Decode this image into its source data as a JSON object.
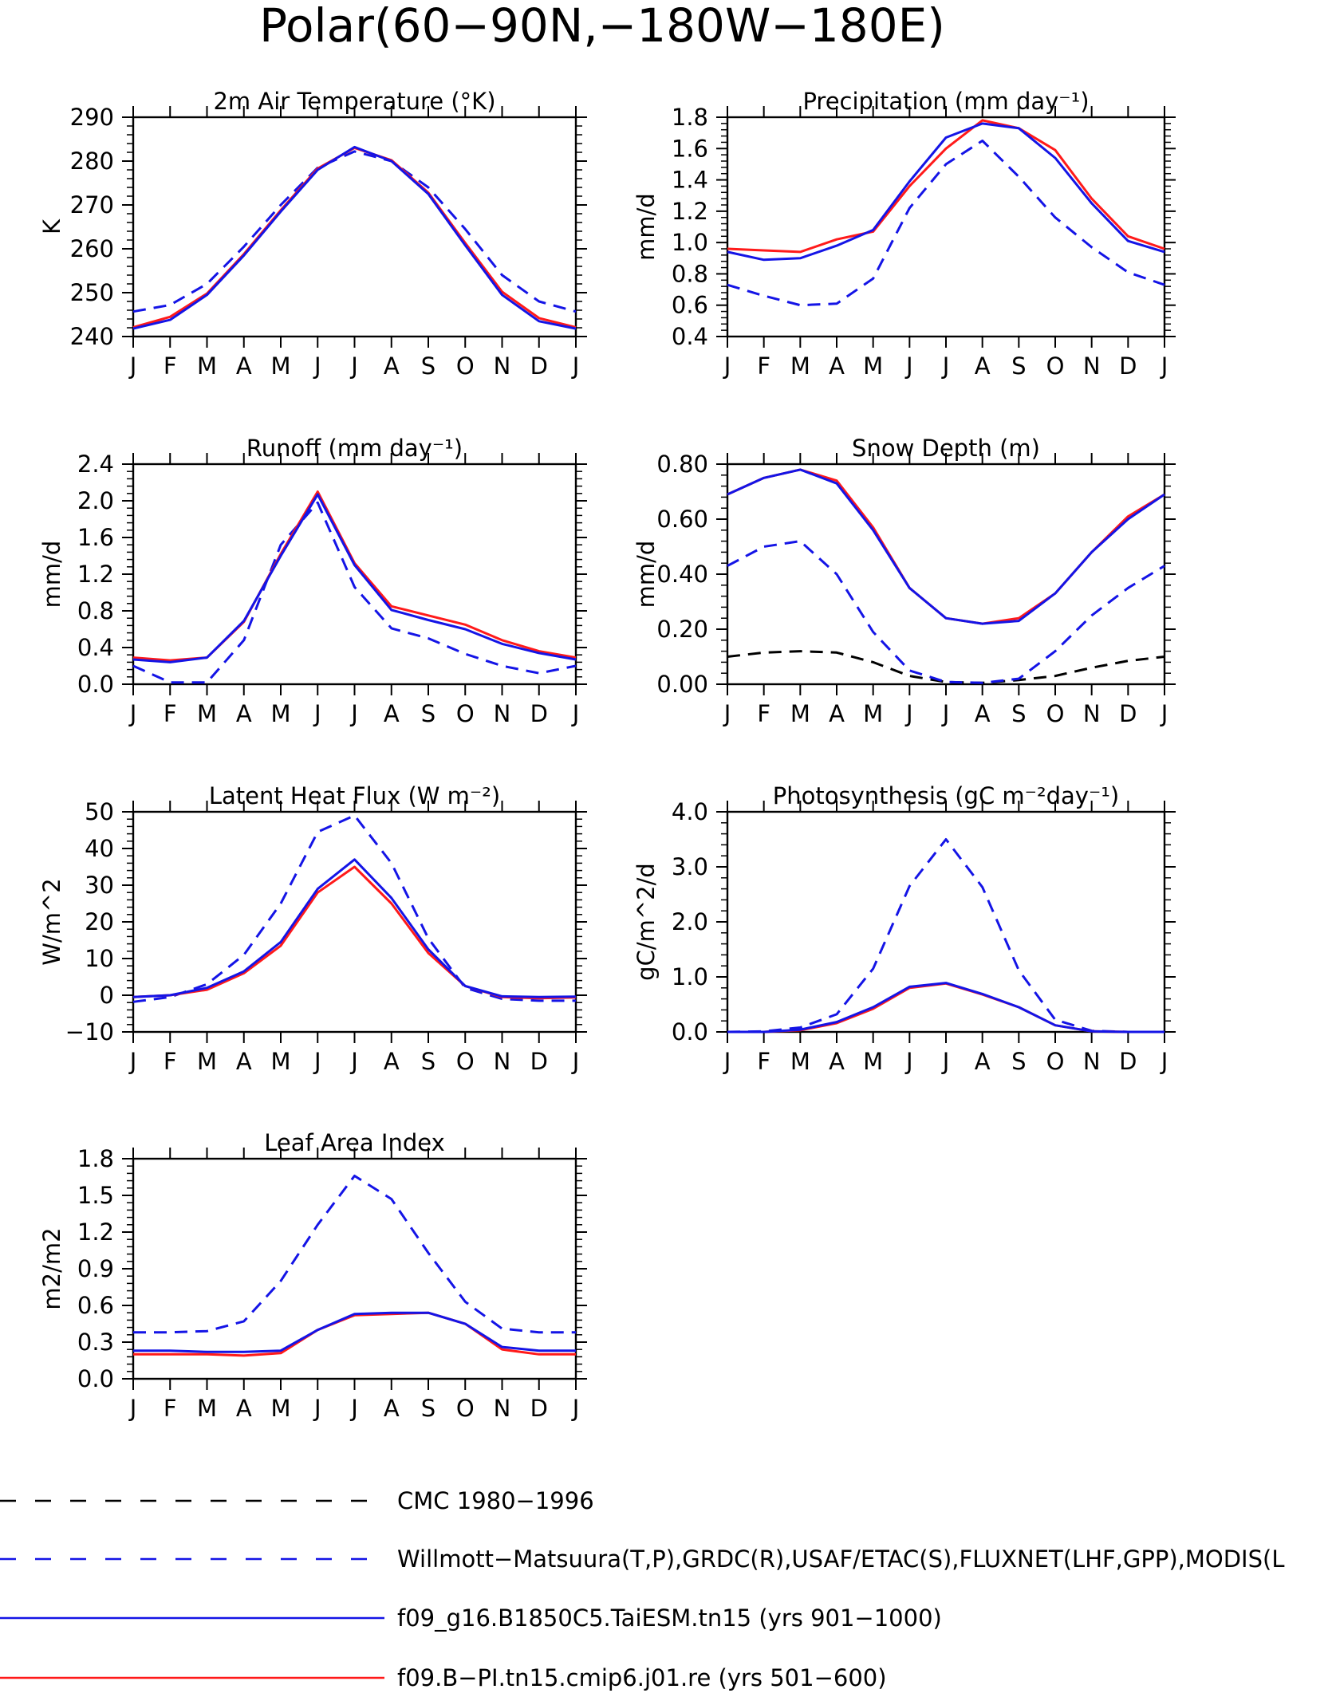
{
  "page_title": "Polar(60−90N,−180W−180E)",
  "months": [
    "J",
    "F",
    "M",
    "A",
    "M",
    "J",
    "J",
    "A",
    "S",
    "O",
    "N",
    "D",
    "J"
  ],
  "colors": {
    "model_blue": "#1414e6",
    "model_red": "#ff1a1a",
    "obs_blue": "#1414e6",
    "obs_black": "#000000"
  },
  "chart_data": [
    {
      "type": "line",
      "title": "2m Air Temperature (°K)",
      "ylabel": "K",
      "ylim": [
        240,
        290
      ],
      "yticks": [
        "240",
        "250",
        "260",
        "270",
        "280",
        "290"
      ],
      "x": [
        "J",
        "F",
        "M",
        "A",
        "M",
        "J",
        "J",
        "A",
        "S",
        "O",
        "N",
        "D",
        "J"
      ],
      "series": [
        {
          "name": "Willmott−Matsuura(T,P),GRDC(R),USAF/ETAC(S),FLUXNET(LHF,GPP),MODIS(L",
          "style": "dashed",
          "color": "blue",
          "values": [
            245.7,
            247.2,
            252.0,
            260.5,
            270.0,
            278.5,
            282.2,
            280.0,
            274.0,
            264.5,
            254.0,
            248.0,
            245.7
          ]
        },
        {
          "name": "f09.B−PI.tn15.cmip6.j01.re (yrs 501−600)",
          "style": "solid",
          "color": "red",
          "values": [
            242.1,
            244.5,
            249.8,
            258.8,
            268.8,
            278.3,
            283.0,
            280.2,
            272.8,
            261.3,
            250.2,
            244.2,
            242.1
          ]
        },
        {
          "name": "f09_g16.B1850C5.TaiESM.tn15 (yrs 901−1000)",
          "style": "solid",
          "color": "blue",
          "values": [
            241.8,
            243.8,
            249.5,
            258.5,
            268.5,
            278.0,
            283.2,
            280.0,
            272.5,
            260.8,
            249.5,
            243.5,
            241.8
          ]
        }
      ]
    },
    {
      "type": "line",
      "title": "Precipitation (mm day⁻¹)",
      "ylabel": "mm/d",
      "ylim": [
        0.4,
        1.8
      ],
      "yticks": [
        "0.4",
        "0.6",
        "0.8",
        "1.0",
        "1.2",
        "1.4",
        "1.6",
        "1.8"
      ],
      "x": [
        "J",
        "F",
        "M",
        "A",
        "M",
        "J",
        "J",
        "A",
        "S",
        "O",
        "N",
        "D",
        "J"
      ],
      "series": [
        {
          "name": "Willmott−Matsuura(T,P),GRDC(R),USAF/ETAC(S),FLUXNET(LHF,GPP),MODIS(L",
          "style": "dashed",
          "color": "blue",
          "values": [
            0.73,
            0.66,
            0.6,
            0.61,
            0.77,
            1.22,
            1.5,
            1.65,
            1.42,
            1.16,
            0.97,
            0.81,
            0.73
          ]
        },
        {
          "name": "f09.B−PI.tn15.cmip6.j01.re (yrs 501−600)",
          "style": "solid",
          "color": "red",
          "values": [
            0.96,
            0.95,
            0.94,
            1.02,
            1.07,
            1.36,
            1.6,
            1.78,
            1.73,
            1.59,
            1.28,
            1.04,
            0.96
          ]
        },
        {
          "name": "f09_g16.B1850C5.TaiESM.tn15 (yrs 901−1000)",
          "style": "solid",
          "color": "blue",
          "values": [
            0.94,
            0.89,
            0.9,
            0.98,
            1.08,
            1.39,
            1.67,
            1.76,
            1.73,
            1.54,
            1.25,
            1.01,
            0.94
          ]
        }
      ]
    },
    {
      "type": "line",
      "title": "Runoff (mm day⁻¹)",
      "ylabel": "mm/d",
      "ylim": [
        0.0,
        2.4
      ],
      "yticks": [
        "0.0",
        "0.4",
        "0.8",
        "1.2",
        "1.6",
        "2.0",
        "2.4"
      ],
      "x": [
        "J",
        "F",
        "M",
        "A",
        "M",
        "J",
        "J",
        "A",
        "S",
        "O",
        "N",
        "D",
        "J"
      ],
      "series": [
        {
          "name": "Willmott−Matsuura(T,P),GRDC(R),USAF/ETAC(S),FLUXNET(LHF,GPP),MODIS(L",
          "style": "dashed",
          "color": "blue",
          "values": [
            0.2,
            0.02,
            0.02,
            0.48,
            1.52,
            1.98,
            1.06,
            0.61,
            0.5,
            0.33,
            0.2,
            0.12,
            0.2
          ]
        },
        {
          "name": "f09.B−PI.tn15.cmip6.j01.re (yrs 501−600)",
          "style": "solid",
          "color": "red",
          "values": [
            0.29,
            0.26,
            0.29,
            0.68,
            1.42,
            2.1,
            1.32,
            0.85,
            0.75,
            0.65,
            0.48,
            0.36,
            0.29
          ]
        },
        {
          "name": "f09_g16.B1850C5.TaiESM.tn15 (yrs 901−1000)",
          "style": "solid",
          "color": "blue",
          "values": [
            0.27,
            0.24,
            0.29,
            0.69,
            1.4,
            2.07,
            1.3,
            0.81,
            0.7,
            0.6,
            0.44,
            0.34,
            0.27
          ]
        }
      ]
    },
    {
      "type": "line",
      "title": "Snow Depth (m)",
      "ylabel": "mm/d",
      "ylim": [
        0.0,
        0.8
      ],
      "yticks": [
        "0.00",
        "0.20",
        "0.40",
        "0.60",
        "0.80"
      ],
      "x": [
        "J",
        "F",
        "M",
        "A",
        "M",
        "J",
        "J",
        "A",
        "S",
        "O",
        "N",
        "D",
        "J"
      ],
      "series": [
        {
          "name": "CMC 1980−1996",
          "style": "dashed",
          "color": "black",
          "values": [
            0.1,
            0.115,
            0.12,
            0.115,
            0.08,
            0.03,
            0.008,
            0.005,
            0.015,
            0.03,
            0.06,
            0.085,
            0.1
          ]
        },
        {
          "name": "Willmott−Matsuura(T,P),GRDC(R),USAF/ETAC(S),FLUXNET(LHF,GPP),MODIS(L",
          "style": "dashed",
          "color": "blue",
          "values": [
            0.43,
            0.5,
            0.52,
            0.4,
            0.19,
            0.05,
            0.008,
            0.005,
            0.02,
            0.12,
            0.25,
            0.35,
            0.43
          ]
        },
        {
          "name": "f09.B−PI.tn15.cmip6.j01.re (yrs 501−600)",
          "style": "solid",
          "color": "red",
          "values": [
            0.69,
            0.75,
            0.78,
            0.74,
            0.57,
            0.35,
            0.24,
            0.22,
            0.24,
            0.33,
            0.48,
            0.61,
            0.69
          ]
        },
        {
          "name": "f09_g16.B1850C5.TaiESM.tn15 (yrs 901−1000)",
          "style": "solid",
          "color": "blue",
          "values": [
            0.69,
            0.75,
            0.78,
            0.73,
            0.56,
            0.35,
            0.24,
            0.22,
            0.23,
            0.33,
            0.48,
            0.6,
            0.69
          ]
        }
      ]
    },
    {
      "type": "line",
      "title": "Latent Heat Flux (W m⁻²)",
      "ylabel": "W/m^2",
      "ylim": [
        -10,
        50
      ],
      "yticks": [
        "−10",
        "0",
        "10",
        "20",
        "30",
        "40",
        "50"
      ],
      "x": [
        "J",
        "F",
        "M",
        "A",
        "M",
        "J",
        "J",
        "A",
        "S",
        "O",
        "N",
        "D",
        "J"
      ],
      "series": [
        {
          "name": "Willmott−Matsuura(T,P),GRDC(R),USAF/ETAC(S),FLUXNET(LHF,GPP),MODIS(L",
          "style": "dashed",
          "color": "blue",
          "values": [
            -1.8,
            -0.5,
            3.0,
            11.0,
            25.0,
            44.5,
            49.0,
            36.0,
            15.5,
            2.0,
            -1.0,
            -1.5,
            -1.5
          ]
        },
        {
          "name": "f09.B−PI.tn15.cmip6.j01.re (yrs 501−600)",
          "style": "solid",
          "color": "red",
          "values": [
            -0.5,
            0.0,
            1.5,
            6.0,
            13.5,
            28.0,
            35.0,
            25.0,
            11.5,
            2.5,
            -0.5,
            -0.8,
            -0.6
          ]
        },
        {
          "name": "f09_g16.B1850C5.TaiESM.tn15 (yrs 901−1000)",
          "style": "solid",
          "color": "blue",
          "values": [
            -0.5,
            0.0,
            2.0,
            6.5,
            14.5,
            29.0,
            37.0,
            26.5,
            12.5,
            2.5,
            -0.3,
            -0.5,
            -0.4
          ]
        }
      ]
    },
    {
      "type": "line",
      "title": "Photosynthesis (gC m⁻²day⁻¹)",
      "ylabel": "gC/m^2/d",
      "ylim": [
        0.0,
        4.0
      ],
      "yticks": [
        "0.0",
        "1.0",
        "2.0",
        "3.0",
        "4.0"
      ],
      "x": [
        "J",
        "F",
        "M",
        "A",
        "M",
        "J",
        "J",
        "A",
        "S",
        "O",
        "N",
        "D",
        "J"
      ],
      "series": [
        {
          "name": "Willmott−Matsuura(T,P),GRDC(R),USAF/ETAC(S),FLUXNET(LHF,GPP),MODIS(L",
          "style": "dashed",
          "color": "blue",
          "values": [
            0.0,
            0.01,
            0.08,
            0.32,
            1.15,
            2.65,
            3.5,
            2.63,
            1.12,
            0.22,
            0.02,
            0.0,
            0.0
          ]
        },
        {
          "name": "f09.B−PI.tn15.cmip6.j01.re (yrs 501−600)",
          "style": "solid",
          "color": "red",
          "values": [
            0.0,
            0.0,
            0.03,
            0.16,
            0.42,
            0.8,
            0.88,
            0.68,
            0.45,
            0.12,
            0.01,
            0.0,
            0.0
          ]
        },
        {
          "name": "f09_g16.B1850C5.TaiESM.tn15 (yrs 901−1000)",
          "style": "solid",
          "color": "blue",
          "values": [
            0.0,
            0.0,
            0.04,
            0.18,
            0.45,
            0.82,
            0.89,
            0.69,
            0.45,
            0.12,
            0.01,
            0.0,
            0.0
          ]
        }
      ]
    },
    {
      "type": "line",
      "title": "Leaf Area Index",
      "ylabel": "m2/m2",
      "ylim": [
        0.0,
        1.8
      ],
      "yticks": [
        "0.0",
        "0.3",
        "0.6",
        "0.9",
        "1.2",
        "1.5",
        "1.8"
      ],
      "x": [
        "J",
        "F",
        "M",
        "A",
        "M",
        "J",
        "J",
        "A",
        "S",
        "O",
        "N",
        "D",
        "J"
      ],
      "series": [
        {
          "name": "Willmott−Matsuura(T,P),GRDC(R),USAF/ETAC(S),FLUXNET(LHF,GPP),MODIS(L",
          "style": "dashed",
          "color": "blue",
          "values": [
            0.38,
            0.38,
            0.39,
            0.47,
            0.8,
            1.26,
            1.66,
            1.47,
            1.03,
            0.63,
            0.41,
            0.38,
            0.38
          ]
        },
        {
          "name": "f09.B−PI.tn15.cmip6.j01.re (yrs 501−600)",
          "style": "solid",
          "color": "red",
          "values": [
            0.2,
            0.2,
            0.2,
            0.19,
            0.21,
            0.4,
            0.52,
            0.53,
            0.54,
            0.45,
            0.24,
            0.2,
            0.2
          ]
        },
        {
          "name": "f09_g16.B1850C5.TaiESM.tn15 (yrs 901−1000)",
          "style": "solid",
          "color": "blue",
          "values": [
            0.23,
            0.23,
            0.22,
            0.22,
            0.23,
            0.4,
            0.53,
            0.54,
            0.54,
            0.45,
            0.26,
            0.23,
            0.23
          ]
        }
      ]
    }
  ],
  "legend": {
    "entries": [
      {
        "label": "CMC 1980−1996",
        "color": "#000000",
        "style": "dashed"
      },
      {
        "label": "Willmott−Matsuura(T,P),GRDC(R),USAF/ETAC(S),FLUXNET(LHF,GPP),MODIS(L",
        "color": "#1414e6",
        "style": "dashed"
      },
      {
        "label": "f09_g16.B1850C5.TaiESM.tn15 (yrs 901−1000)",
        "color": "#1414e6",
        "style": "solid"
      },
      {
        "label": "f09.B−PI.tn15.cmip6.j01.re (yrs 501−600)",
        "color": "#ff1a1a",
        "style": "solid"
      }
    ]
  }
}
